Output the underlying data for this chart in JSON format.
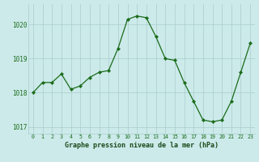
{
  "x": [
    0,
    1,
    2,
    3,
    4,
    5,
    6,
    7,
    8,
    9,
    10,
    11,
    12,
    13,
    14,
    15,
    16,
    17,
    18,
    19,
    20,
    21,
    22,
    23
  ],
  "y": [
    1018.0,
    1018.3,
    1018.3,
    1018.55,
    1018.1,
    1018.2,
    1018.45,
    1018.6,
    1018.65,
    1019.3,
    1020.15,
    1020.25,
    1020.2,
    1019.65,
    1019.0,
    1018.95,
    1018.3,
    1017.75,
    1017.2,
    1017.15,
    1017.2,
    1017.75,
    1018.6,
    1019.45
  ],
  "line_color": "#1a6b1a",
  "marker": "D",
  "marker_size": 2.2,
  "bg_color": "#cceaea",
  "grid_color": "#aacccc",
  "xlabel": "Graphe pression niveau de la mer (hPa)",
  "xlabel_color": "#1a4a1a",
  "tick_color": "#1a6b1a",
  "label_bg": "#5a8a3a",
  "ylim": [
    1016.8,
    1020.6
  ],
  "yticks": [
    1017,
    1018,
    1019,
    1020
  ],
  "xlim": [
    -0.5,
    23.5
  ],
  "xticks": [
    0,
    1,
    2,
    3,
    4,
    5,
    6,
    7,
    8,
    9,
    10,
    11,
    12,
    13,
    14,
    15,
    16,
    17,
    18,
    19,
    20,
    21,
    22,
    23
  ],
  "xtick_labels": [
    "0",
    "1",
    "2",
    "3",
    "4",
    "5",
    "6",
    "7",
    "8",
    "9",
    "10",
    "11",
    "12",
    "13",
    "14",
    "15",
    "16",
    "17",
    "18",
    "19",
    "20",
    "21",
    "22",
    "23"
  ]
}
